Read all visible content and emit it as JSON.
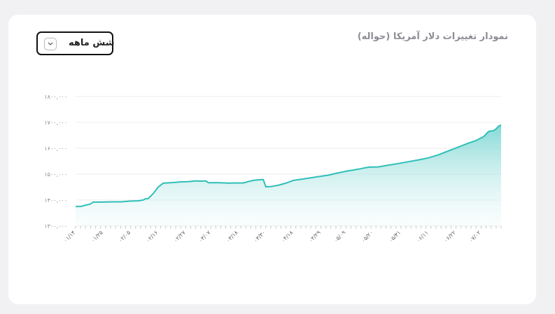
{
  "header": {
    "title": "نمودار تغییرات دلار آمریکا (حواله)",
    "range_label": "شش ماهه",
    "range_icon": "chevron-down-icon"
  },
  "colors": {
    "line": "#2fbfb8",
    "fill_top": "#6fd3cf",
    "fill_bottom": "#eaf8f8",
    "grid": "#ececef"
  },
  "chart_data": {
    "type": "area",
    "title": "نمودار تغییرات دلار آمریکا (حواله)",
    "xlabel": "",
    "ylabel": "",
    "ylim": [
      1300000,
      1800000
    ],
    "y_ticks": [
      1300000,
      1400000,
      1500000,
      1600000,
      1700000,
      1800000
    ],
    "y_tick_labels": [
      "۱۳۰۰,۰۰۰",
      "۱۴۰۰,۰۰۰",
      "۱۵۰۰,۰۰۰",
      "۱۶۰۰,۰۰۰",
      "۱۷۰۰,۰۰۰",
      "۱۸۰۰,۰۰۰"
    ],
    "x_tick_labels": [
      "۰۱/۱۴",
      "۰۱/۲۵",
      "۰۲/۰۵",
      "۰۲/۱۶",
      "۰۲/۲۷",
      "۰۳/۰۷",
      "۰۳/۱۸",
      "۰۳/۳۰",
      "۰۴/۱۸",
      "۰۴/۲۹",
      "۰۵/۰۹",
      "۰۵/۲۰",
      "۰۵/۳۱",
      "۰۶/۱۱",
      "۰۶/۲۲",
      "۰۷/۰۲"
    ],
    "x_tick_positions": [
      0,
      11,
      22,
      33,
      44,
      54,
      65,
      76,
      87,
      98,
      108,
      119,
      130,
      141,
      152,
      162
    ],
    "x_range": [
      0,
      170
    ],
    "grid": true,
    "legend": "none",
    "series": [
      {
        "points": [
          [
            0,
            1375000
          ],
          [
            2,
            1375000
          ],
          [
            4,
            1380000
          ],
          [
            6,
            1385000
          ],
          [
            7,
            1392000
          ],
          [
            10,
            1392000
          ],
          [
            14,
            1393000
          ],
          [
            18,
            1393000
          ],
          [
            22,
            1396000
          ],
          [
            25,
            1397000
          ],
          [
            27,
            1400000
          ],
          [
            28,
            1405000
          ],
          [
            29,
            1405000
          ],
          [
            31,
            1425000
          ],
          [
            33,
            1450000
          ],
          [
            35,
            1465000
          ],
          [
            38,
            1467000
          ],
          [
            42,
            1470000
          ],
          [
            45,
            1471000
          ],
          [
            48,
            1474000
          ],
          [
            50,
            1473000
          ],
          [
            52,
            1474000
          ],
          [
            53,
            1467000
          ],
          [
            57,
            1467000
          ],
          [
            60,
            1466000
          ],
          [
            61,
            1465000
          ],
          [
            63,
            1466000
          ],
          [
            67,
            1466000
          ],
          [
            69,
            1471000
          ],
          [
            71,
            1476000
          ],
          [
            73,
            1478000
          ],
          [
            75,
            1479000
          ],
          [
            76,
            1451000
          ],
          [
            78,
            1452000
          ],
          [
            81,
            1457000
          ],
          [
            84,
            1465000
          ],
          [
            87,
            1476000
          ],
          [
            90,
            1480000
          ],
          [
            94,
            1486000
          ],
          [
            98,
            1492000
          ],
          [
            101,
            1496000
          ],
          [
            104,
            1503000
          ],
          [
            108,
            1511000
          ],
          [
            111,
            1516000
          ],
          [
            114,
            1521000
          ],
          [
            117,
            1527000
          ],
          [
            121,
            1528000
          ],
          [
            125,
            1535000
          ],
          [
            129,
            1541000
          ],
          [
            133,
            1548000
          ],
          [
            137,
            1555000
          ],
          [
            141,
            1563000
          ],
          [
            145,
            1575000
          ],
          [
            149,
            1590000
          ],
          [
            153,
            1605000
          ],
          [
            157,
            1620000
          ],
          [
            160,
            1630000
          ],
          [
            163,
            1645000
          ],
          [
            165,
            1665000
          ],
          [
            167,
            1668000
          ],
          [
            168,
            1675000
          ],
          [
            169,
            1685000
          ],
          [
            170,
            1690000
          ]
        ]
      }
    ]
  }
}
